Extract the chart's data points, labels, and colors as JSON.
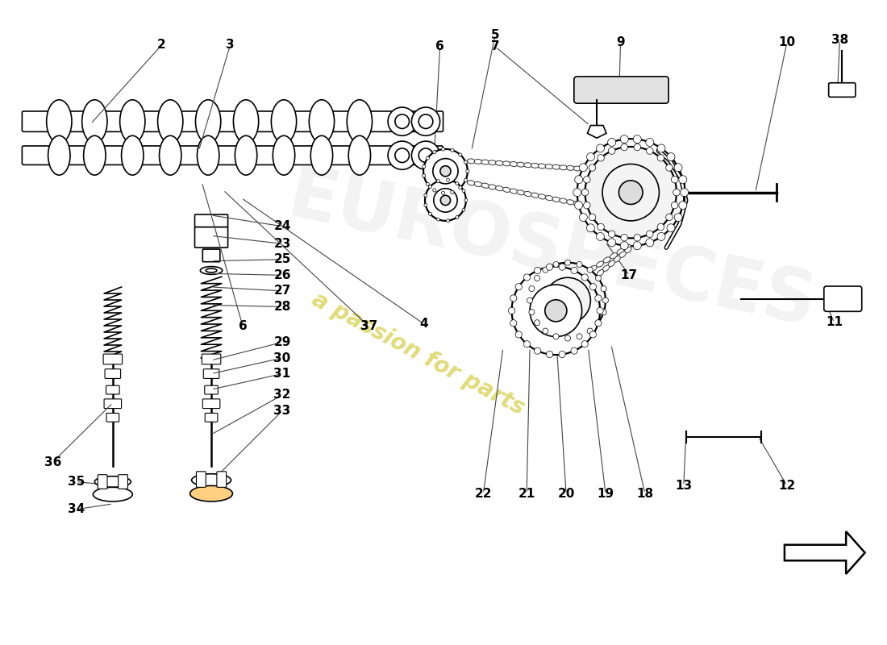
{
  "background_color": "#ffffff",
  "line_color": "#000000",
  "annotation_color": "#000000",
  "watermark1": "a passion for parts",
  "watermark1_color": "#d4cc40",
  "watermark1_alpha": 0.7
}
